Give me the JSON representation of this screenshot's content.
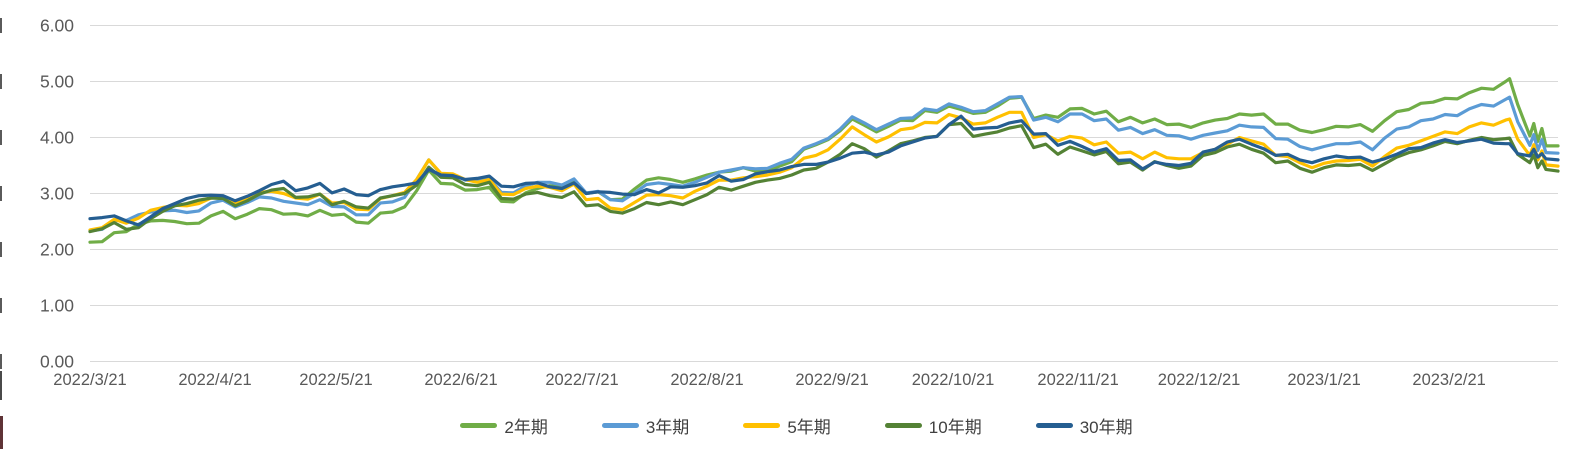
{
  "chart_data": {
    "type": "line",
    "title": "",
    "grid": true,
    "legend_position": "bottom",
    "x_axis": {
      "tick_labels": [
        "2022/3/21",
        "2022/4/21",
        "2022/5/21",
        "2022/6/21",
        "2022/7/21",
        "2022/8/21",
        "2022/9/21",
        "2022/10/21",
        "2022/11/21",
        "2022/12/21",
        "2023/1/21",
        "2023/2/21"
      ],
      "tick_days": [
        0,
        31,
        61,
        92,
        122,
        153,
        184,
        214,
        245,
        275,
        306,
        337
      ],
      "min_day": 0,
      "max_day": 364
    },
    "y_axis": {
      "tick_labels": [
        "0.00",
        "1.00",
        "2.00",
        "3.00",
        "4.00",
        "5.00",
        "6.00"
      ],
      "min": 0,
      "max": 6,
      "step": 1
    },
    "sample_days": [
      0,
      3,
      6,
      9,
      12,
      15,
      18,
      21,
      24,
      27,
      30,
      33,
      36,
      39,
      42,
      45,
      48,
      51,
      54,
      57,
      60,
      63,
      66,
      69,
      72,
      75,
      78,
      81,
      84,
      87,
      90,
      93,
      96,
      99,
      102,
      105,
      108,
      111,
      114,
      117,
      120,
      123,
      126,
      129,
      132,
      135,
      138,
      141,
      144,
      147,
      150,
      153,
      156,
      159,
      162,
      165,
      168,
      171,
      174,
      177,
      180,
      183,
      186,
      189,
      192,
      195,
      198,
      201,
      204,
      207,
      210,
      213,
      216,
      219,
      222,
      225,
      228,
      231,
      234,
      237,
      240,
      243,
      246,
      249,
      252,
      255,
      258,
      261,
      264,
      267,
      270,
      273,
      276,
      279,
      282,
      285,
      288,
      291,
      294,
      297,
      300,
      303,
      306,
      309,
      312,
      315,
      318,
      321,
      324,
      327,
      330,
      333,
      336,
      339,
      342,
      345,
      348,
      351,
      352,
      354,
      357,
      358,
      359,
      360,
      361,
      364
    ],
    "series": [
      {
        "name": "2年期",
        "color": "#70AD47",
        "values": [
          2.13,
          2.14,
          2.3,
          2.32,
          2.45,
          2.51,
          2.52,
          2.5,
          2.46,
          2.47,
          2.6,
          2.68,
          2.55,
          2.63,
          2.73,
          2.71,
          2.63,
          2.64,
          2.6,
          2.7,
          2.61,
          2.63,
          2.49,
          2.47,
          2.65,
          2.67,
          2.76,
          3.05,
          3.42,
          3.18,
          3.17,
          3.06,
          3.07,
          3.11,
          2.86,
          2.85,
          3.01,
          3.09,
          3.14,
          3.12,
          3.24,
          3.0,
          3.03,
          2.89,
          2.9,
          3.08,
          3.24,
          3.28,
          3.25,
          3.2,
          3.26,
          3.33,
          3.38,
          3.4,
          3.46,
          3.4,
          3.41,
          3.49,
          3.57,
          3.79,
          3.87,
          3.96,
          4.12,
          4.33,
          4.22,
          4.1,
          4.2,
          4.31,
          4.3,
          4.48,
          4.45,
          4.56,
          4.5,
          4.43,
          4.45,
          4.56,
          4.7,
          4.72,
          4.34,
          4.4,
          4.36,
          4.51,
          4.52,
          4.42,
          4.47,
          4.28,
          4.36,
          4.26,
          4.33,
          4.23,
          4.24,
          4.18,
          4.26,
          4.31,
          4.34,
          4.42,
          4.4,
          4.42,
          4.24,
          4.24,
          4.13,
          4.09,
          4.14,
          4.2,
          4.19,
          4.23,
          4.11,
          4.3,
          4.46,
          4.5,
          4.61,
          4.63,
          4.7,
          4.69,
          4.8,
          4.88,
          4.86,
          5.0,
          5.05,
          4.59,
          4.03,
          4.25,
          3.93,
          4.16,
          3.85,
          3.85
        ]
      },
      {
        "name": "3年期",
        "color": "#5B9BD5",
        "values": [
          2.33,
          2.36,
          2.52,
          2.52,
          2.62,
          2.67,
          2.69,
          2.7,
          2.66,
          2.69,
          2.83,
          2.88,
          2.76,
          2.84,
          2.94,
          2.92,
          2.86,
          2.83,
          2.8,
          2.89,
          2.77,
          2.76,
          2.62,
          2.62,
          2.83,
          2.85,
          2.93,
          3.25,
          3.6,
          3.35,
          3.34,
          3.24,
          3.23,
          3.27,
          3.02,
          3.01,
          3.14,
          3.2,
          3.2,
          3.15,
          3.26,
          3.01,
          3.04,
          2.89,
          2.87,
          3.01,
          3.16,
          3.19,
          3.16,
          3.13,
          3.2,
          3.29,
          3.38,
          3.42,
          3.46,
          3.44,
          3.45,
          3.54,
          3.61,
          3.81,
          3.89,
          3.98,
          4.15,
          4.37,
          4.26,
          4.14,
          4.24,
          4.34,
          4.35,
          4.51,
          4.48,
          4.6,
          4.54,
          4.46,
          4.48,
          4.6,
          4.72,
          4.73,
          4.31,
          4.36,
          4.28,
          4.42,
          4.42,
          4.3,
          4.33,
          4.13,
          4.18,
          4.07,
          4.14,
          4.04,
          4.03,
          3.97,
          4.04,
          4.08,
          4.12,
          4.22,
          4.19,
          4.18,
          3.98,
          3.97,
          3.84,
          3.78,
          3.84,
          3.89,
          3.89,
          3.92,
          3.78,
          3.99,
          4.15,
          4.19,
          4.3,
          4.33,
          4.41,
          4.39,
          4.51,
          4.59,
          4.56,
          4.68,
          4.72,
          4.28,
          3.86,
          4.05,
          3.77,
          3.96,
          3.73,
          3.72
        ]
      },
      {
        "name": "5年期",
        "color": "#FFC000",
        "values": [
          2.35,
          2.39,
          2.54,
          2.47,
          2.56,
          2.7,
          2.75,
          2.79,
          2.78,
          2.82,
          2.92,
          2.95,
          2.83,
          2.92,
          3.02,
          3.04,
          3.0,
          2.92,
          2.9,
          2.99,
          2.83,
          2.84,
          2.72,
          2.71,
          2.91,
          2.96,
          3.02,
          3.25,
          3.6,
          3.36,
          3.35,
          3.25,
          3.2,
          3.25,
          2.99,
          2.98,
          3.09,
          3.13,
          3.11,
          3.05,
          3.17,
          2.89,
          2.91,
          2.74,
          2.71,
          2.84,
          2.97,
          2.98,
          2.96,
          2.92,
          3.04,
          3.13,
          3.24,
          3.24,
          3.28,
          3.3,
          3.33,
          3.38,
          3.46,
          3.63,
          3.68,
          3.78,
          3.97,
          4.19,
          4.05,
          3.92,
          4.01,
          4.14,
          4.17,
          4.27,
          4.26,
          4.41,
          4.35,
          4.24,
          4.26,
          4.36,
          4.45,
          4.45,
          4.0,
          4.05,
          3.94,
          4.02,
          3.99,
          3.87,
          3.92,
          3.72,
          3.74,
          3.62,
          3.74,
          3.64,
          3.62,
          3.62,
          3.73,
          3.79,
          3.88,
          4.0,
          3.94,
          3.88,
          3.68,
          3.66,
          3.55,
          3.46,
          3.54,
          3.58,
          3.59,
          3.61,
          3.49,
          3.66,
          3.81,
          3.86,
          3.94,
          4.02,
          4.1,
          4.07,
          4.19,
          4.26,
          4.22,
          4.31,
          4.33,
          3.97,
          3.68,
          3.87,
          3.6,
          3.76,
          3.51,
          3.49
        ]
      },
      {
        "name": "10年期",
        "color": "#548235",
        "values": [
          2.32,
          2.37,
          2.48,
          2.36,
          2.39,
          2.55,
          2.68,
          2.78,
          2.82,
          2.88,
          2.92,
          2.91,
          2.78,
          2.87,
          2.99,
          3.06,
          3.09,
          2.93,
          2.94,
          2.99,
          2.8,
          2.86,
          2.76,
          2.74,
          2.92,
          2.96,
          3.0,
          3.15,
          3.47,
          3.29,
          3.28,
          3.16,
          3.14,
          3.2,
          2.91,
          2.9,
          2.99,
          3.02,
          2.96,
          2.93,
          3.03,
          2.78,
          2.8,
          2.68,
          2.65,
          2.73,
          2.84,
          2.8,
          2.85,
          2.8,
          2.89,
          2.98,
          3.11,
          3.06,
          3.13,
          3.2,
          3.24,
          3.27,
          3.33,
          3.42,
          3.45,
          3.56,
          3.7,
          3.89,
          3.8,
          3.65,
          3.76,
          3.89,
          3.94,
          4.0,
          4.02,
          4.23,
          4.25,
          4.02,
          4.06,
          4.1,
          4.17,
          4.21,
          3.82,
          3.88,
          3.7,
          3.83,
          3.76,
          3.69,
          3.75,
          3.53,
          3.56,
          3.42,
          3.57,
          3.5,
          3.45,
          3.49,
          3.68,
          3.73,
          3.83,
          3.88,
          3.79,
          3.72,
          3.55,
          3.58,
          3.45,
          3.38,
          3.46,
          3.51,
          3.5,
          3.52,
          3.41,
          3.53,
          3.65,
          3.73,
          3.78,
          3.85,
          3.93,
          3.89,
          3.95,
          4.0,
          3.96,
          3.98,
          3.99,
          3.7,
          3.55,
          3.69,
          3.46,
          3.58,
          3.43,
          3.4
        ]
      },
      {
        "name": "30年期",
        "color": "#255E91",
        "values": [
          2.55,
          2.57,
          2.6,
          2.51,
          2.44,
          2.58,
          2.73,
          2.82,
          2.91,
          2.96,
          2.97,
          2.96,
          2.87,
          2.95,
          3.05,
          3.16,
          3.22,
          3.05,
          3.1,
          3.18,
          3.01,
          3.08,
          2.98,
          2.96,
          3.07,
          3.12,
          3.15,
          3.19,
          3.43,
          3.33,
          3.32,
          3.25,
          3.27,
          3.31,
          3.13,
          3.12,
          3.18,
          3.19,
          3.12,
          3.09,
          3.19,
          3.0,
          3.03,
          3.02,
          2.99,
          2.98,
          3.07,
          3.01,
          3.12,
          3.11,
          3.14,
          3.19,
          3.32,
          3.22,
          3.25,
          3.35,
          3.39,
          3.42,
          3.48,
          3.52,
          3.52,
          3.56,
          3.63,
          3.72,
          3.74,
          3.69,
          3.74,
          3.85,
          3.92,
          3.99,
          4.02,
          4.23,
          4.38,
          4.15,
          4.17,
          4.18,
          4.26,
          4.3,
          4.06,
          4.07,
          3.86,
          3.93,
          3.84,
          3.74,
          3.8,
          3.59,
          3.6,
          3.44,
          3.56,
          3.52,
          3.5,
          3.54,
          3.74,
          3.79,
          3.92,
          3.97,
          3.88,
          3.8,
          3.68,
          3.7,
          3.6,
          3.55,
          3.62,
          3.67,
          3.64,
          3.65,
          3.56,
          3.62,
          3.7,
          3.8,
          3.82,
          3.9,
          3.96,
          3.91,
          3.94,
          3.97,
          3.9,
          3.89,
          3.89,
          3.71,
          3.67,
          3.79,
          3.65,
          3.71,
          3.62,
          3.6
        ]
      }
    ]
  },
  "colors": {
    "gridline": "#D9D9D9",
    "axis_text": "#595959",
    "legend_text": "#404040",
    "background": "#FFFFFF"
  }
}
